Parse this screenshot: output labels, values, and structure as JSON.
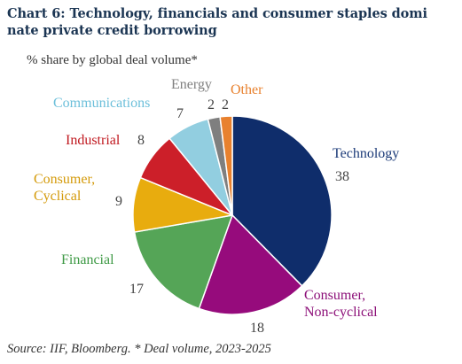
{
  "chart_data": {
    "type": "pie",
    "title": [
      "Chart 6: Technology, financials and consumer staples domi",
      "nate private credit borrowing"
    ],
    "subtitle": "% share by global deal volume*",
    "slices": [
      {
        "label": [
          "Technology"
        ],
        "value": 38,
        "color": "#0f2d6b"
      },
      {
        "label": [
          "Consumer,",
          "Non-cyclical"
        ],
        "value": 18,
        "color": "#960b7c"
      },
      {
        "label": [
          "Financial"
        ],
        "value": 17,
        "color": "#55a557"
      },
      {
        "label": [
          "Consumer,",
          "Cyclical"
        ],
        "value": 9,
        "color": "#e8ac0e"
      },
      {
        "label": [
          "Industrial"
        ],
        "value": 8,
        "color": "#cc1f29"
      },
      {
        "label": [
          "Communications"
        ],
        "value": 7,
        "color": "#92cee0"
      },
      {
        "label": [
          "Energy"
        ],
        "value": 2,
        "color": "#7f7f7f"
      },
      {
        "label": [
          "Other"
        ],
        "value": 2,
        "color": "#e8812e"
      }
    ],
    "source": "Source: IIF, Bloomberg. * Deal volume, 2023-2025"
  }
}
